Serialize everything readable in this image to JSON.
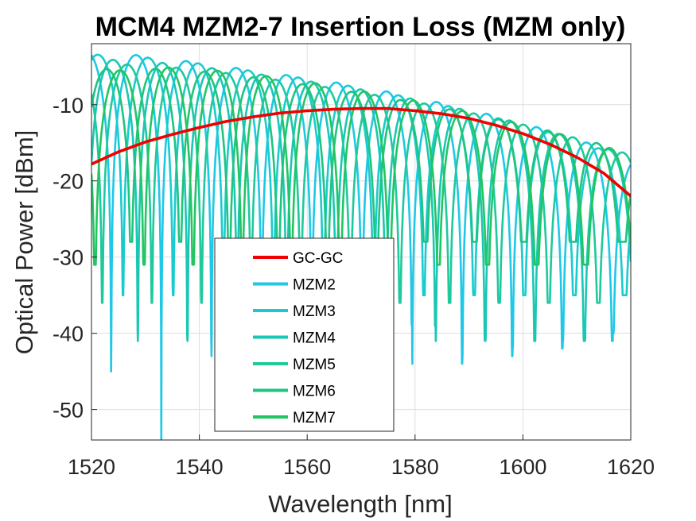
{
  "chart_data": {
    "type": "line",
    "title": "MCM4 MZM2-7 Insertion Loss (MZM only)",
    "xlabel": "Wavelength [nm]",
    "ylabel": "Optical Power [dBm]",
    "xlim": [
      1520,
      1620
    ],
    "ylim": [
      -54,
      -2
    ],
    "xticks": [
      1520,
      1540,
      1560,
      1580,
      1600,
      1620
    ],
    "xtick_labels": [
      "1520",
      "1540",
      "1560",
      "1580",
      "1600",
      "1620"
    ],
    "yticks": [
      -50,
      -40,
      -30,
      -20,
      -10
    ],
    "ytick_labels": [
      "-50",
      "-40",
      "-30",
      "-20",
      "-10"
    ],
    "grid": true,
    "legend_position": "lower-center",
    "series": [
      {
        "name": "GC-GC",
        "color": "#f00000",
        "x": [
          1520,
          1525,
          1530,
          1535,
          1540,
          1545,
          1550,
          1555,
          1560,
          1565,
          1570,
          1575,
          1580,
          1585,
          1590,
          1595,
          1600,
          1605,
          1610,
          1615,
          1620
        ],
        "y": [
          -17.8,
          -16.2,
          -14.9,
          -13.9,
          -13.0,
          -12.2,
          -11.6,
          -11.1,
          -10.8,
          -10.6,
          -10.5,
          -10.5,
          -10.8,
          -11.2,
          -11.8,
          -12.7,
          -13.8,
          -15.2,
          -16.9,
          -19.0,
          -22.0
        ]
      },
      {
        "name": "MZM2",
        "color": "#1ec8e6",
        "fsr": 9.3,
        "null_wavelength": 1528.3,
        "null_depth": -54,
        "x": [
          1520,
          1530,
          1540,
          1550,
          1560,
          1570,
          1580,
          1590,
          1600,
          1610,
          1620
        ],
        "y_envelope": [
          -3.0,
          -3.6,
          -4.5,
          -5.5,
          -6.5,
          -7.6,
          -9.0,
          -10.6,
          -12.4,
          -14.5,
          -17.0
        ]
      },
      {
        "name": "MZM3",
        "color": "#19cbcf",
        "fsr": 9.3,
        "null_wavelength": 1530.5,
        "null_depth": -35,
        "x": [
          1520,
          1530,
          1540,
          1550,
          1560,
          1570,
          1580,
          1590,
          1600,
          1610,
          1620
        ],
        "y_envelope": [
          -3.4,
          -3.8,
          -4.6,
          -5.6,
          -6.6,
          -7.8,
          -9.2,
          -10.8,
          -12.6,
          -14.7,
          -17.2
        ]
      },
      {
        "name": "MZM4",
        "color": "#1ac7b3",
        "fsr": 9.2,
        "null_wavelength": 1533.2,
        "null_depth": -41,
        "x": [
          1520,
          1530,
          1540,
          1550,
          1560,
          1570,
          1580,
          1590,
          1600,
          1610,
          1620
        ],
        "y_envelope": [
          -4.0,
          -4.3,
          -5.0,
          -5.9,
          -6.9,
          -8.0,
          -9.3,
          -10.8,
          -12.5,
          -14.5,
          -16.8
        ]
      },
      {
        "name": "MZM5",
        "color": "#1ec99d",
        "fsr": 9.2,
        "null_wavelength": 1535.8,
        "null_depth": -36,
        "x": [
          1520,
          1530,
          1540,
          1550,
          1560,
          1570,
          1580,
          1590,
          1600,
          1610,
          1620
        ],
        "y_envelope": [
          -4.6,
          -4.8,
          -5.4,
          -6.3,
          -7.3,
          -8.4,
          -9.6,
          -11.0,
          -12.6,
          -14.4,
          -16.6
        ]
      },
      {
        "name": "MZM6",
        "color": "#1fc47f",
        "fsr": 9.1,
        "null_wavelength": 1522.8,
        "null_depth": -28,
        "x": [
          1520,
          1530,
          1540,
          1550,
          1560,
          1570,
          1580,
          1590,
          1600,
          1610,
          1620
        ],
        "y_envelope": [
          -5.4,
          -5.2,
          -5.6,
          -6.4,
          -7.4,
          -8.5,
          -9.7,
          -11.1,
          -12.6,
          -14.3,
          -16.3
        ]
      },
      {
        "name": "MZM7",
        "color": "#22c562",
        "fsr": 9.1,
        "null_wavelength": 1525.2,
        "null_depth": -31,
        "x": [
          1520,
          1530,
          1540,
          1550,
          1560,
          1570,
          1580,
          1590,
          1600,
          1610,
          1620
        ],
        "y_envelope": [
          -6.0,
          -5.0,
          -5.3,
          -6.0,
          -7.0,
          -8.2,
          -9.5,
          -11.0,
          -12.6,
          -14.4,
          -16.5
        ]
      }
    ]
  }
}
